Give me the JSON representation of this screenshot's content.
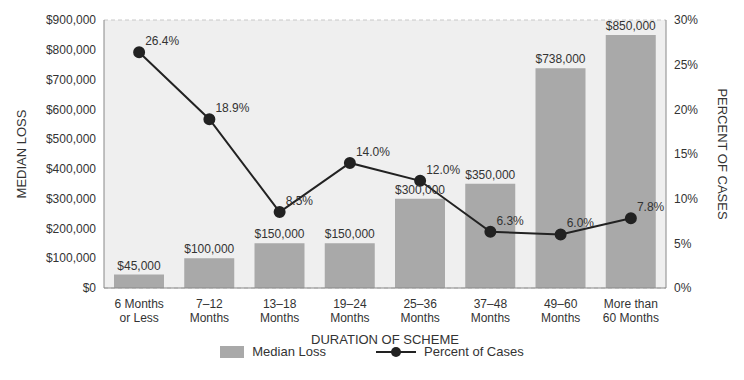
{
  "chart_data": {
    "type": "bar",
    "x_label": "DURATION OF SCHEME",
    "y_label": "MEDIAN LOSS",
    "y2_label": "PERCENT OF CASES",
    "categories": [
      "6 Months\nor Less",
      "7–12\nMonths",
      "13–18\nMonths",
      "19–24\nMonths",
      "25–36\nMonths",
      "37–48\nMonths",
      "49–60\nMonths",
      "More than\n60 Months"
    ],
    "series": [
      {
        "name": "Median Loss",
        "type": "bar",
        "color": "#a9a9a9",
        "values": [
          45000,
          100000,
          150000,
          150000,
          300000,
          350000,
          738000,
          850000
        ],
        "value_labels": [
          "$45,000",
          "$100,000",
          "$150,000",
          "$150,000",
          "$300,000",
          "$350,000",
          "$738,000",
          "$850,000"
        ]
      },
      {
        "name": "Percent of Cases",
        "type": "line",
        "axis": "y2",
        "color": "#222222",
        "marker": "circle",
        "line_style": "solid",
        "values": [
          26.4,
          18.9,
          8.5,
          14.0,
          12.0,
          6.3,
          6.0,
          7.8
        ],
        "value_labels": [
          "26.4%",
          "18.9%",
          "8.5%",
          "14.0%",
          "12.0%",
          "6.3%",
          "6.0%",
          "7.8%"
        ]
      }
    ],
    "ylim": [
      0,
      900000
    ],
    "yticks": [
      {
        "value": 0,
        "label": "$0"
      },
      {
        "value": 100000,
        "label": "$100,000"
      },
      {
        "value": 200000,
        "label": "$200,000"
      },
      {
        "value": 300000,
        "label": "$300,000"
      },
      {
        "value": 400000,
        "label": "$400,000"
      },
      {
        "value": 500000,
        "label": "$500,000"
      },
      {
        "value": 600000,
        "label": "$600,000"
      },
      {
        "value": 700000,
        "label": "$700,000"
      },
      {
        "value": 800000,
        "label": "$800,000"
      },
      {
        "value": 900000,
        "label": "$900,000"
      }
    ],
    "y2lim": [
      0,
      30
    ],
    "y2ticks": [
      {
        "value": 0,
        "label": "0%"
      },
      {
        "value": 5,
        "label": "5%"
      },
      {
        "value": 10,
        "label": "10%"
      },
      {
        "value": 15,
        "label": "15%"
      },
      {
        "value": 20,
        "label": "20%"
      },
      {
        "value": 25,
        "label": "25%"
      },
      {
        "value": 30,
        "label": "30%"
      }
    ],
    "grid": true,
    "legend": "bottom",
    "data_labels": true
  }
}
